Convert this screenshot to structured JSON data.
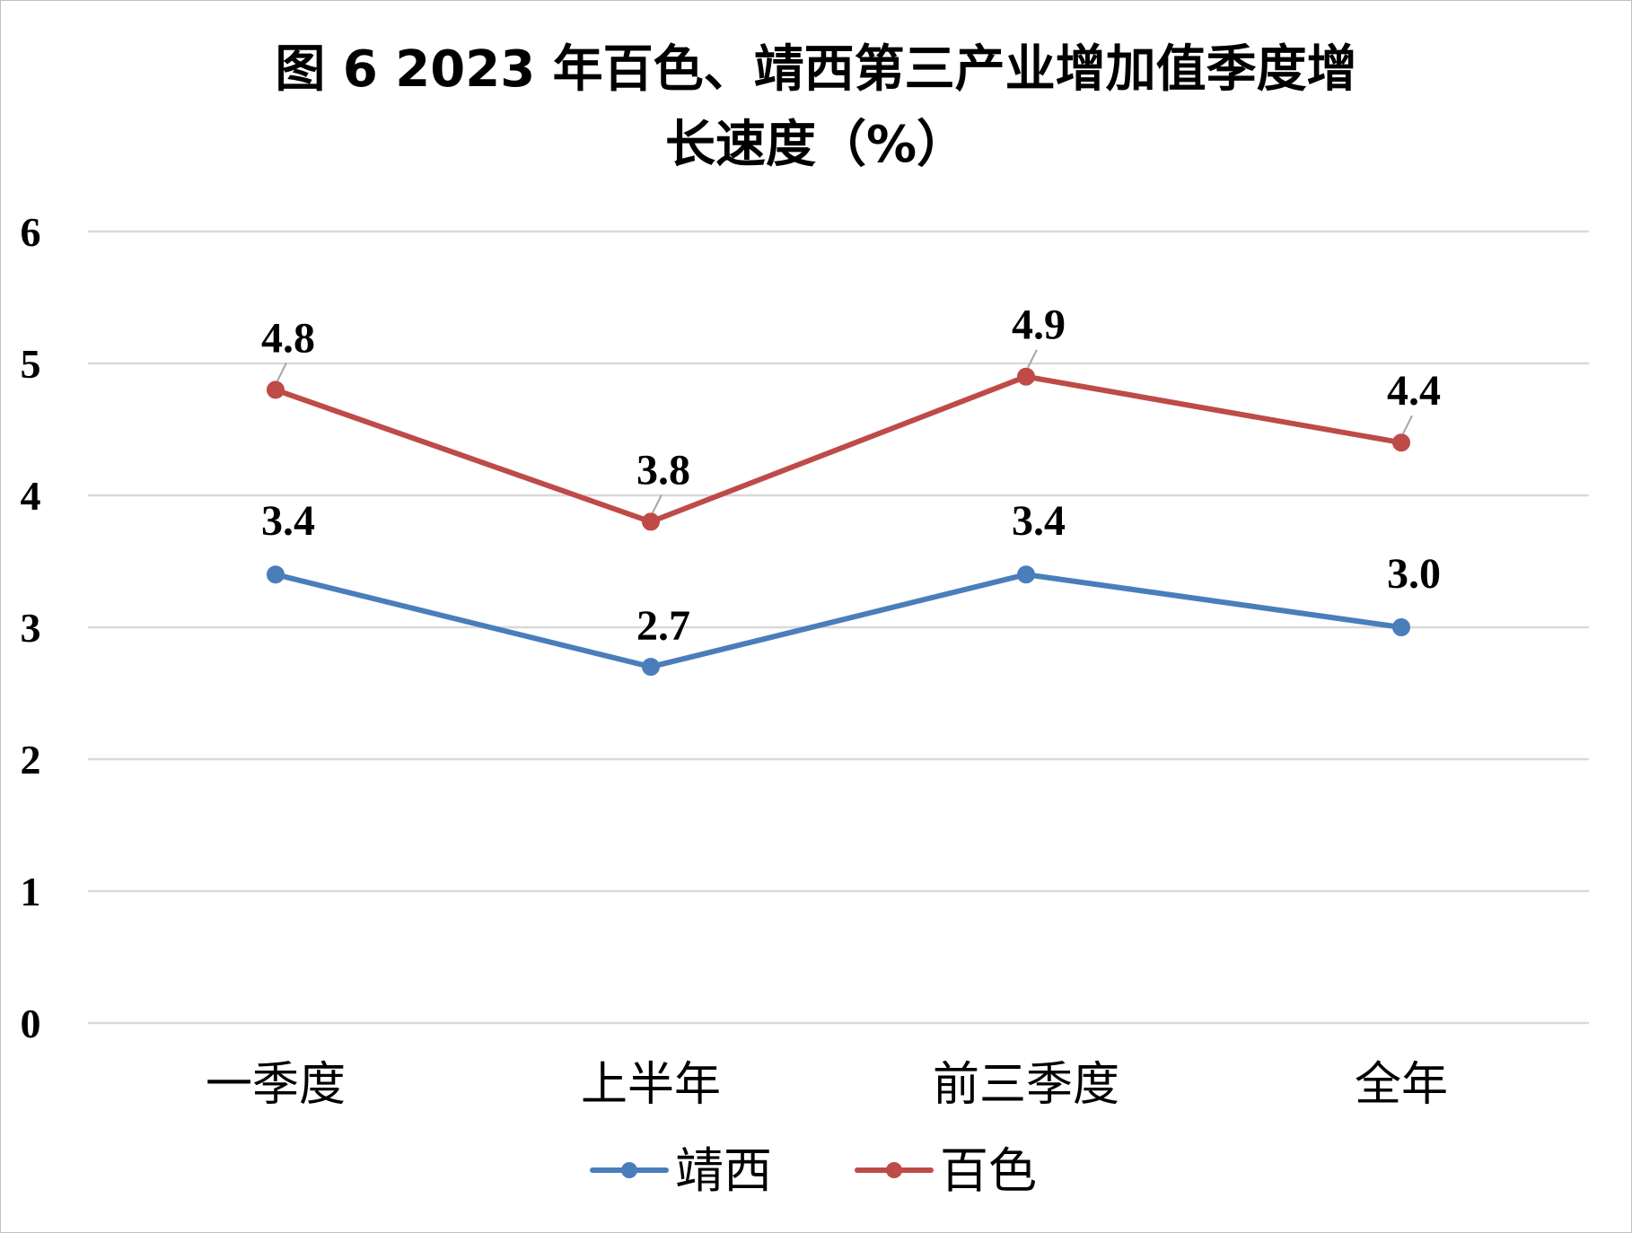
{
  "chart_data": {
    "type": "line",
    "title_lines": [
      "图 6 2023 年百色、靖西第三产业增加值季度增",
      "长速度（%）"
    ],
    "categories": [
      "一季度",
      "上半年",
      "前三季度",
      "全年"
    ],
    "series": [
      {
        "name": "靖西",
        "values": [
          3.4,
          2.7,
          3.4,
          3.0
        ],
        "labels": [
          "3.4",
          "2.7",
          "3.4",
          "3.0"
        ],
        "color": "#4a7ebb"
      },
      {
        "name": "百色",
        "values": [
          4.8,
          3.8,
          4.9,
          4.4
        ],
        "labels": [
          "4.8",
          "3.8",
          "4.9",
          "4.4"
        ],
        "color": "#be4b48"
      }
    ],
    "ylim": [
      0,
      6
    ],
    "yticks": [
      0,
      1,
      2,
      3,
      4,
      5,
      6
    ],
    "grid": true,
    "legend_position": "bottom"
  }
}
